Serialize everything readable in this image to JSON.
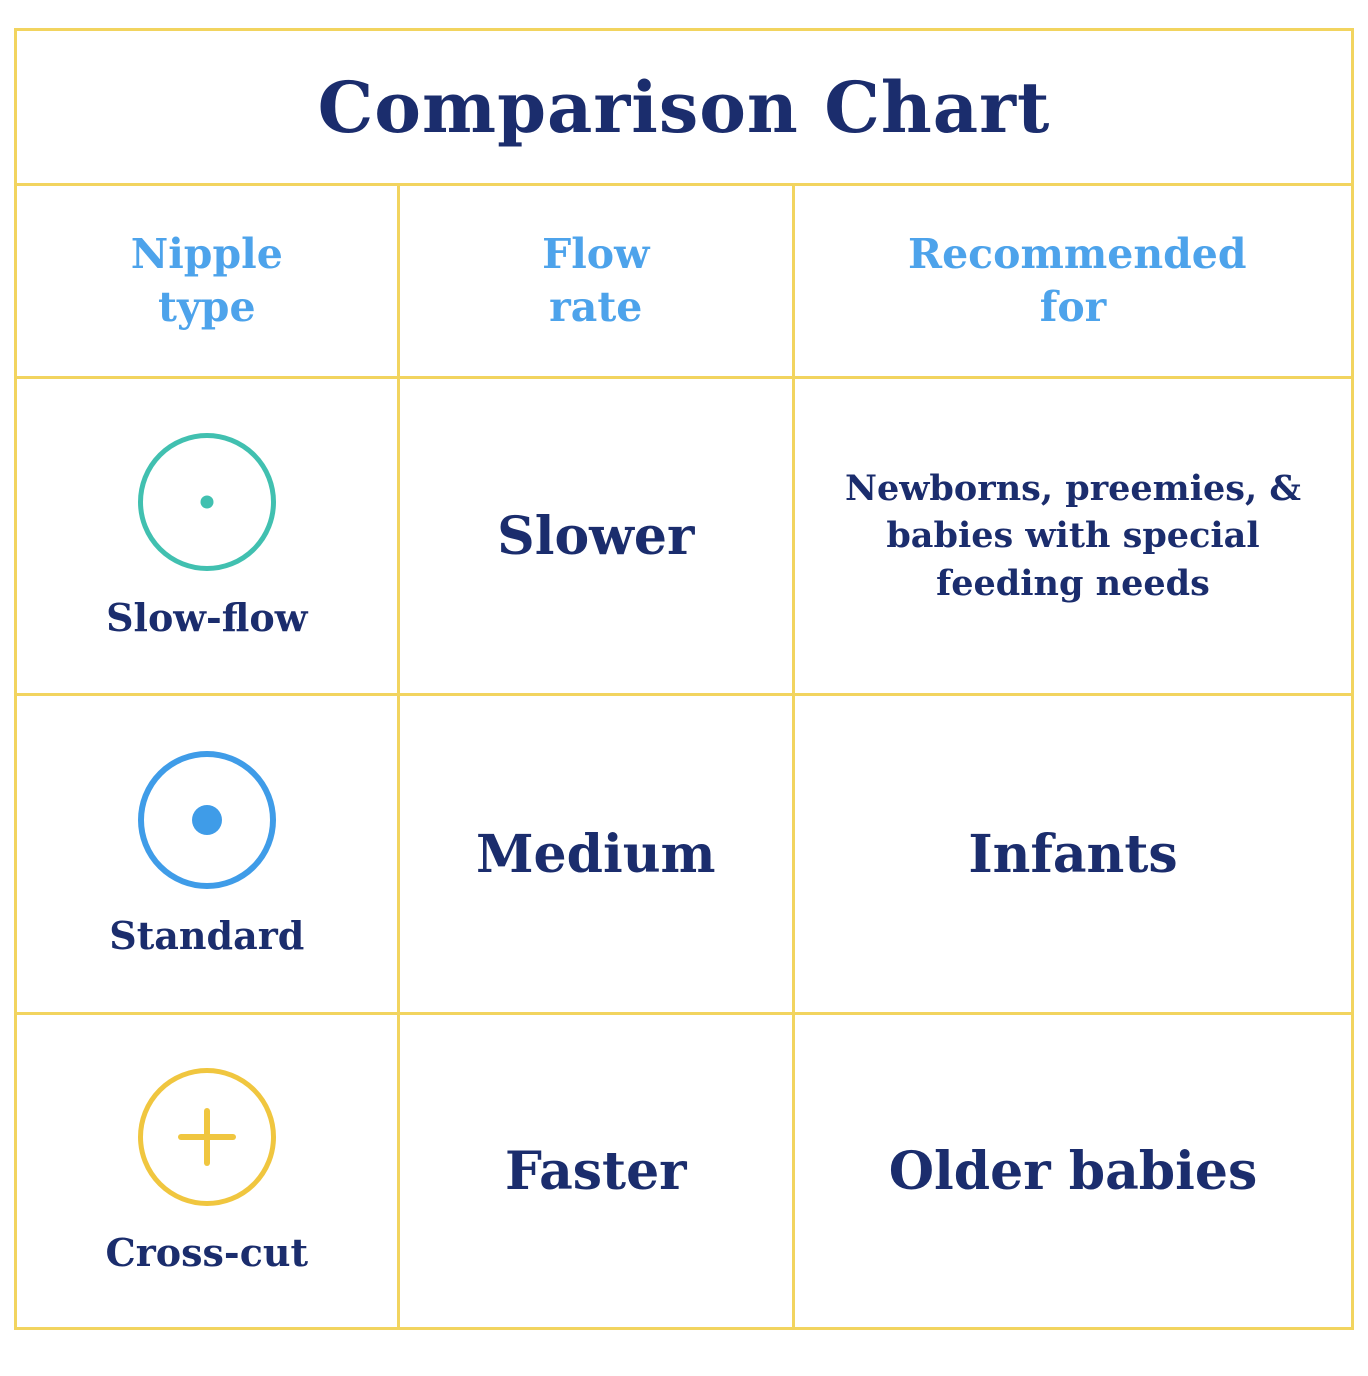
{
  "title": "Comparison Chart",
  "colors": {
    "grid_yellow": "#f2d45f",
    "navy_text": "#1b2d6d",
    "header_blue": "#4da3eb",
    "slow_flow_teal": "#41c0b0",
    "standard_blue": "#3f9ce8",
    "cross_cut_yellow": "#f0c63f"
  },
  "table": {
    "headers": [
      "Nipple type",
      "Flow rate",
      "Recommended for"
    ],
    "rows": [
      {
        "nipple_type": "Slow-flow",
        "icon": "slow-flow-pinhole-nipple-icon",
        "flow_rate": "Slower",
        "recommended_for": "Newborns, preemies, & babies with special feeding needs"
      },
      {
        "nipple_type": "Standard",
        "icon": "standard-hole-nipple-icon",
        "flow_rate": "Medium",
        "recommended_for": "Infants"
      },
      {
        "nipple_type": "Cross-cut",
        "icon": "cross-cut-nipple-icon",
        "flow_rate": "Faster",
        "recommended_for": "Older babies"
      }
    ]
  },
  "chart_data": {
    "type": "table",
    "title": "Comparison Chart",
    "columns": [
      "Nipple type",
      "Flow rate",
      "Recommended for"
    ],
    "rows": [
      [
        "Slow-flow",
        "Slower",
        "Newborns, preemies, & babies with special feeding needs"
      ],
      [
        "Standard",
        "Medium",
        "Infants"
      ],
      [
        "Cross-cut",
        "Faster",
        "Older babies"
      ]
    ],
    "legend_position": "none",
    "grid": true
  }
}
